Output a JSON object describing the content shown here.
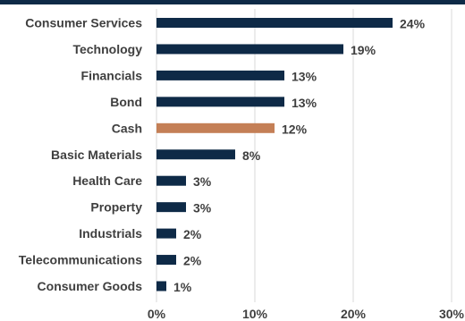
{
  "chart_data": {
    "type": "bar",
    "orientation": "horizontal",
    "categories": [
      "Consumer Services",
      "Technology",
      "Financials",
      "Bond",
      "Cash",
      "Basic Materials",
      "Health Care",
      "Property",
      "Industrials",
      "Telecommunications",
      "Consumer Goods"
    ],
    "values": [
      24,
      19,
      13,
      13,
      12,
      8,
      3,
      3,
      2,
      2,
      1
    ],
    "data_labels": [
      "24%",
      "19%",
      "13%",
      "13%",
      "12%",
      "8%",
      "3%",
      "3%",
      "2%",
      "2%",
      "1%"
    ],
    "highlight_category": "Cash",
    "xlim": [
      0,
      30
    ],
    "xticks": [
      0,
      10,
      20,
      30
    ],
    "xtick_labels": [
      "0%",
      "10%",
      "20%",
      "30%"
    ],
    "grid": "vertical",
    "legend": "none",
    "title": "",
    "xlabel": "",
    "ylabel": "",
    "colors": {
      "bar": "#0e2a47",
      "highlight": "#c47f56",
      "grid": "#d9d9d9",
      "text": "#3f3f3f",
      "top_border": "#0e2a47"
    }
  }
}
